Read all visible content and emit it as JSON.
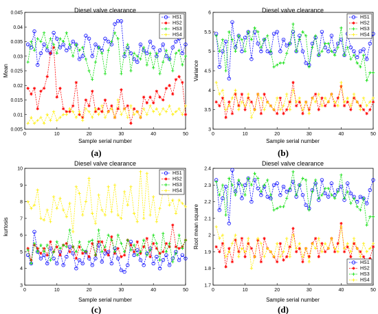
{
  "series_styles": [
    {
      "name": "HS1",
      "color": "#0000ff",
      "marker": "circle"
    },
    {
      "name": "HS2",
      "color": "#ff0000",
      "marker": "star"
    },
    {
      "name": "HS3",
      "color": "#00dd00",
      "marker": "plus"
    },
    {
      "name": "HS4",
      "color": "#ffee00",
      "marker": "plus"
    }
  ],
  "chart_data": [
    {
      "id": "a",
      "caption": "(a)",
      "type": "line",
      "title": "Diesel valve clearance",
      "xlabel": "Sample serial number",
      "ylabel": "Mean",
      "xlim": [
        0,
        50
      ],
      "ylim": [
        0.005,
        0.045
      ],
      "xticks": [
        "0",
        "10",
        "20",
        "30",
        "40",
        "50"
      ],
      "yticks": [
        "0.005",
        "0.01",
        "0.015",
        "0.02",
        "0.025",
        "0.03",
        "0.035",
        "0.04",
        "0.045"
      ],
      "legend": "top-right",
      "series": [
        {
          "name": "HS1",
          "values": [
            0.034,
            0.033,
            0.0385,
            0.027,
            0.031,
            0.034,
            0.032,
            0.031,
            0.038,
            0.036,
            0.033,
            0.034,
            0.032,
            0.033,
            0.035,
            0.034,
            0.029,
            0.03,
            0.037,
            0.036,
            0.03,
            0.034,
            0.033,
            0.032,
            0.036,
            0.035,
            0.034,
            0.041,
            0.042,
            0.042,
            0.03,
            0.033,
            0.031,
            0.029,
            0.028,
            0.034,
            0.032,
            0.031,
            0.035,
            0.033,
            0.03,
            0.032,
            0.034,
            0.03,
            0.029,
            0.033,
            0.035,
            0.036,
            0.031,
            0.034
          ]
        },
        {
          "name": "HS2",
          "values": [
            0.019,
            0.017,
            0.019,
            0.012,
            0.018,
            0.019,
            0.023,
            0.031,
            0.033,
            0.016,
            0.019,
            0.012,
            0.011,
            0.011,
            0.013,
            0.021,
            0.01,
            0.009,
            0.015,
            0.013,
            0.018,
            0.011,
            0.012,
            0.011,
            0.015,
            0.011,
            0.013,
            0.009,
            0.012,
            0.0185,
            0.012,
            0.013,
            0.007,
            0.012,
            0.011,
            0.009,
            0.016,
            0.014,
            0.016,
            0.014,
            0.018,
            0.016,
            0.015,
            0.019,
            0.02,
            0.017,
            0.022,
            0.023,
            0.021,
            0.01
          ]
        },
        {
          "name": "HS3",
          "values": [
            0.028,
            0.035,
            0.032,
            0.036,
            0.035,
            0.038,
            0.033,
            0.036,
            0.034,
            0.031,
            0.036,
            0.035,
            0.038,
            0.034,
            0.03,
            0.034,
            0.032,
            0.033,
            0.029,
            0.025,
            0.022,
            0.028,
            0.033,
            0.031,
            0.024,
            0.032,
            0.035,
            0.038,
            0.036,
            0.024,
            0.031,
            0.034,
            0.025,
            0.031,
            0.03,
            0.029,
            0.033,
            0.027,
            0.031,
            0.026,
            0.031,
            0.024,
            0.028,
            0.032,
            0.029,
            0.025,
            0.031,
            0.032,
            0.027,
            0.03
          ]
        },
        {
          "name": "HS4",
          "values": [
            0.007,
            0.009,
            0.007,
            0.008,
            0.009,
            0.007,
            0.01,
            0.008,
            0.011,
            0.008,
            0.009,
            0.01,
            0.01,
            0.012,
            0.011,
            0.009,
            0.011,
            0.008,
            0.012,
            0.011,
            0.009,
            0.012,
            0.01,
            0.013,
            0.009,
            0.011,
            0.012,
            0.009,
            0.015,
            0.01,
            0.012,
            0.009,
            0.013,
            0.01,
            0.011,
            0.009,
            0.012,
            0.01,
            0.013,
            0.011,
            0.012,
            0.01,
            0.012,
            0.011,
            0.013,
            0.01,
            0.011,
            0.012,
            0.01,
            0.013
          ]
        }
      ]
    },
    {
      "id": "b",
      "caption": "(b)",
      "type": "line",
      "title": "Diesel valve clearance",
      "xlabel": "Sample serial number",
      "ylabel": "Variance",
      "xlim": [
        0,
        50
      ],
      "ylim": [
        3,
        6
      ],
      "xticks": [
        "0",
        "10",
        "20",
        "30",
        "40",
        "50"
      ],
      "yticks": [
        "3",
        "3.5",
        "4",
        "4.5",
        "5",
        "5.5",
        "6"
      ],
      "legend": "top-right",
      "series": [
        {
          "name": "HS1",
          "values": [
            5.45,
            4.6,
            5.0,
            5.25,
            4.3,
            5.75,
            5.1,
            5.4,
            5.0,
            5.35,
            5.5,
            4.8,
            5.5,
            5.2,
            5.0,
            5.3,
            5.0,
            4.95,
            5.45,
            5.5,
            5.0,
            5.3,
            5.15,
            5.2,
            5.5,
            5.0,
            5.4,
            5.0,
            4.7,
            4.65,
            5.2,
            5.35,
            4.9,
            5.5,
            5.1,
            5.0,
            5.4,
            5.0,
            5.2,
            5.3,
            4.9,
            5.45,
            5.1,
            5.0,
            4.85,
            5.0,
            5.05,
            4.8,
            5.2,
            5.45
          ]
        },
        {
          "name": "HS2",
          "values": [
            3.7,
            3.6,
            3.8,
            3.3,
            3.7,
            3.4,
            3.9,
            3.6,
            3.9,
            3.5,
            3.8,
            3.7,
            3.5,
            3.9,
            3.4,
            3.9,
            3.7,
            3.6,
            3.5,
            3.4,
            3.8,
            3.4,
            3.5,
            3.7,
            4.2,
            3.6,
            3.7,
            3.4,
            3.7,
            3.5,
            3.8,
            3.9,
            3.5,
            3.8,
            3.6,
            3.7,
            3.9,
            3.6,
            3.8,
            4.1,
            3.6,
            3.7,
            3.5,
            3.8,
            3.7,
            3.6,
            3.5,
            3.4,
            3.5,
            3.7
          ]
        },
        {
          "name": "HS3",
          "values": [
            5.4,
            5.0,
            5.3,
            4.5,
            5.5,
            5.3,
            5.0,
            5.4,
            5.3,
            5.0,
            5.5,
            5.3,
            5.6,
            5.5,
            5.1,
            5.3,
            5.4,
            5.0,
            4.6,
            4.65,
            4.7,
            4.7,
            4.95,
            5.2,
            5.7,
            5.0,
            5.3,
            5.5,
            5.4,
            4.6,
            5.1,
            5.4,
            4.9,
            5.0,
            5.2,
            5.2,
            5.0,
            4.9,
            5.1,
            5.6,
            4.9,
            5.1,
            4.8,
            4.9,
            4.7,
            4.6,
            4.9,
            4.25,
            4.45,
            4.45
          ]
        },
        {
          "name": "HS4",
          "values": [
            4.2,
            3.9,
            4.0,
            3.5,
            3.6,
            3.8,
            4.0,
            3.5,
            3.7,
            3.6,
            3.9,
            3.3,
            3.5,
            3.9,
            3.8,
            3.5,
            3.7,
            3.6,
            3.5,
            3.8,
            3.5,
            3.6,
            3.9,
            3.5,
            4.0,
            3.7,
            3.8,
            3.5,
            3.7,
            3.4,
            3.8,
            3.7,
            3.9,
            3.6,
            3.8,
            3.7,
            3.9,
            3.7,
            3.6,
            4.2,
            3.7,
            3.8,
            3.6,
            3.9,
            3.7,
            3.5,
            3.8,
            3.6,
            3.7,
            3.8
          ]
        }
      ]
    },
    {
      "id": "c",
      "caption": "(c)",
      "type": "line",
      "title": "Diesel valve clearance",
      "xlabel": "Sample serial number",
      "ylabel": "kurtosis",
      "xlim": [
        0,
        50
      ],
      "ylim": [
        3,
        10
      ],
      "xticks": [
        "0",
        "10",
        "20",
        "30",
        "40",
        "50"
      ],
      "yticks": [
        "3",
        "4",
        "5",
        "6",
        "7",
        "8",
        "9",
        "10"
      ],
      "legend": "top-right",
      "series": [
        {
          "name": "HS1",
          "values": [
            4.8,
            4.3,
            6.2,
            5.0,
            4.6,
            4.8,
            4.3,
            5.2,
            4.6,
            4.3,
            5.0,
            4.2,
            4.7,
            5.3,
            4.9,
            4.0,
            4.5,
            4.3,
            5.0,
            4.6,
            4.2,
            4.6,
            5.4,
            4.4,
            4.9,
            5.0,
            4.3,
            5.2,
            4.6,
            3.9,
            3.8,
            4.2,
            5.6,
            4.8,
            5.1,
            4.5,
            4.2,
            4.9,
            5.2,
            4.3,
            4.7,
            4.0,
            4.5,
            4.8,
            4.2,
            4.6,
            5.0,
            4.5,
            4.8,
            4.6
          ]
        },
        {
          "name": "HS2",
          "values": [
            5.2,
            4.5,
            5.4,
            5.2,
            4.9,
            5.2,
            4.8,
            5.6,
            5.0,
            5.3,
            4.8,
            5.4,
            5.5,
            5.0,
            5.3,
            4.6,
            5.3,
            4.9,
            5.0,
            4.7,
            5.5,
            4.8,
            5.6,
            5.6,
            5.1,
            4.8,
            5.9,
            4.9,
            5.2,
            4.7,
            4.8,
            5.7,
            5.4,
            5.0,
            5.6,
            4.9,
            5.3,
            5.8,
            4.7,
            5.5,
            5.2,
            4.9,
            5.0,
            5.5,
            5.3,
            6.6,
            5.3,
            5.2,
            5.3,
            5.7
          ]
        },
        {
          "name": "HS3",
          "values": [
            5.1,
            4.3,
            5.5,
            5.0,
            5.4,
            5.0,
            5.4,
            4.5,
            5.0,
            5.6,
            5.2,
            5.4,
            5.3,
            6.3,
            5.3,
            5.0,
            5.6,
            5.1,
            5.0,
            5.6,
            5.7,
            4.8,
            6.3,
            5.0,
            5.3,
            6.0,
            5.7,
            5.0,
            6.0,
            5.5,
            5.0,
            5.7,
            5.1,
            5.4,
            4.8,
            5.0,
            5.7,
            4.8,
            5.1,
            6.0,
            5.5,
            4.5,
            6.1,
            5.0,
            5.5,
            4.4,
            4.9,
            6.0,
            5.2,
            5.7
          ]
        },
        {
          "name": "HS4",
          "values": [
            8.0,
            7.6,
            7.8,
            8.7,
            7.0,
            6.9,
            7.5,
            6.8,
            8.3,
            7.6,
            8.2,
            7.5,
            7.1,
            7.9,
            6.2,
            8.9,
            8.5,
            7.2,
            8.0,
            9.4,
            7.3,
            6.7,
            8.4,
            7.5,
            7.2,
            8.9,
            7.4,
            9.0,
            7.2,
            7.0,
            8.6,
            7.8,
            8.9,
            7.3,
            6.8,
            9.8,
            7.0,
            9.7,
            7.2,
            8.3,
            6.8,
            7.6,
            8.6,
            9.2,
            7.8,
            8.1,
            7.3,
            8.1,
            7.9,
            7.7
          ]
        }
      ]
    },
    {
      "id": "d",
      "caption": "(d)",
      "type": "line",
      "title": "Diesel valve clearance",
      "xlabel": "Sample serial number",
      "ylabel": "Root mean square",
      "xlim": [
        0,
        50
      ],
      "ylim": [
        1.7,
        2.4
      ],
      "xticks": [
        "0",
        "10",
        "20",
        "30",
        "40",
        "50"
      ],
      "yticks": [
        "1.7",
        "1.8",
        "1.9",
        "2",
        "2.1",
        "2.2",
        "2.3",
        "2.4"
      ],
      "legend": "bottom-right",
      "series": [
        {
          "name": "HS1",
          "values": [
            2.33,
            2.15,
            2.22,
            2.29,
            2.07,
            2.39,
            2.26,
            2.31,
            2.22,
            2.3,
            2.34,
            2.2,
            2.33,
            2.28,
            2.24,
            2.29,
            2.23,
            2.22,
            2.3,
            2.31,
            2.24,
            2.29,
            2.26,
            2.27,
            2.32,
            2.23,
            2.3,
            2.24,
            2.18,
            2.16,
            2.27,
            2.31,
            2.21,
            2.33,
            2.25,
            2.23,
            2.31,
            2.24,
            2.27,
            2.29,
            2.21,
            2.31,
            2.25,
            2.23,
            2.2,
            2.23,
            2.22,
            2.19,
            2.27,
            2.33
          ]
        },
        {
          "name": "HS2",
          "values": [
            1.93,
            1.9,
            1.95,
            1.81,
            1.92,
            1.84,
            1.97,
            1.9,
            1.98,
            1.87,
            1.95,
            1.92,
            1.87,
            1.97,
            1.84,
            1.98,
            1.92,
            1.9,
            1.87,
            1.84,
            1.95,
            1.85,
            1.87,
            1.93,
            2.04,
            1.9,
            1.92,
            1.84,
            1.92,
            1.87,
            1.95,
            1.98,
            1.87,
            1.95,
            1.9,
            1.92,
            1.98,
            1.9,
            1.95,
            2.07,
            1.9,
            1.93,
            1.87,
            1.95,
            1.92,
            1.9,
            1.87,
            1.84,
            1.86,
            1.93
          ]
        },
        {
          "name": "HS3",
          "values": [
            2.32,
            2.24,
            2.3,
            2.12,
            2.34,
            2.3,
            2.24,
            2.33,
            2.3,
            2.24,
            2.34,
            2.3,
            2.37,
            2.34,
            2.26,
            2.3,
            2.33,
            2.24,
            2.15,
            2.16,
            2.17,
            2.17,
            2.22,
            2.28,
            2.38,
            2.24,
            2.3,
            2.34,
            2.33,
            2.15,
            2.26,
            2.33,
            2.22,
            2.24,
            2.28,
            2.28,
            2.24,
            2.22,
            2.26,
            2.36,
            2.22,
            2.26,
            2.19,
            2.22,
            2.17,
            2.15,
            2.22,
            2.06,
            2.11,
            2.11
          ]
        },
        {
          "name": "HS4",
          "values": [
            2.05,
            1.98,
            2.0,
            1.87,
            1.9,
            1.95,
            2.0,
            1.87,
            1.92,
            1.9,
            1.98,
            1.8,
            1.87,
            1.98,
            1.95,
            1.87,
            1.92,
            1.9,
            1.87,
            1.95,
            1.87,
            1.9,
            1.98,
            1.87,
            2.0,
            1.92,
            1.95,
            1.87,
            1.92,
            1.84,
            1.95,
            1.92,
            1.98,
            1.9,
            1.95,
            1.92,
            1.98,
            1.92,
            1.9,
            2.05,
            1.92,
            1.95,
            1.9,
            1.98,
            1.92,
            1.87,
            1.95,
            1.9,
            1.92,
            1.95
          ]
        }
      ]
    }
  ]
}
